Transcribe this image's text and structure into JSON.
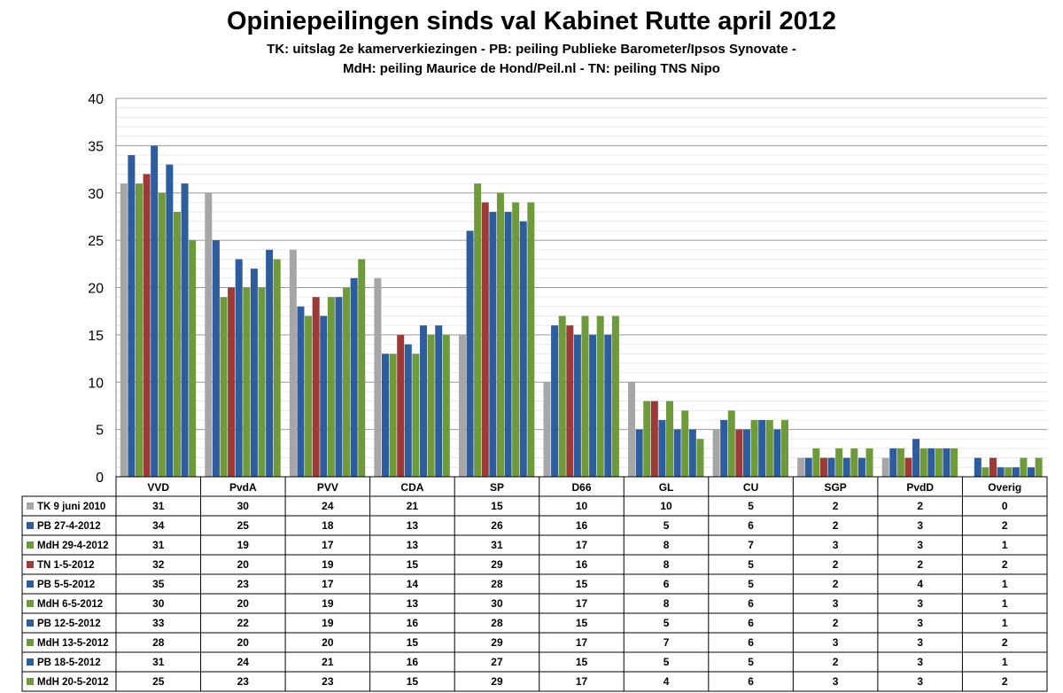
{
  "chart_data": {
    "type": "bar",
    "title": "Opiniepeilingen sinds val Kabinet Rutte april 2012",
    "subtitle_lines": [
      "TK: uitslag 2e kamerverkiezingen - PB: peiling Publieke Barometer/Ipsos Synovate -",
      "MdH: peiling Maurice de Hond/Peil.nl - TN: peiling TNS Nipo"
    ],
    "xlabel": "",
    "ylabel": "",
    "ylim": [
      0,
      40
    ],
    "yticks": [
      0,
      5,
      10,
      15,
      20,
      25,
      30,
      35,
      40
    ],
    "grid": true,
    "legend": "data-table-left",
    "categories": [
      "VVD",
      "PvdA",
      "PVV",
      "CDA",
      "SP",
      "D66",
      "GL",
      "CU",
      "SGP",
      "PvdD",
      "Overig"
    ],
    "series": [
      {
        "name": "TK 9 juni 2010",
        "color": "#a6a6a6",
        "values": [
          31,
          30,
          24,
          21,
          15,
          10,
          10,
          5,
          2,
          2,
          0
        ]
      },
      {
        "name": "PB 27-4-2012",
        "color": "#2e5d9e",
        "values": [
          34,
          25,
          18,
          13,
          26,
          16,
          5,
          6,
          2,
          3,
          2
        ]
      },
      {
        "name": "MdH 29-4-2012",
        "color": "#6f9a3c",
        "values": [
          31,
          19,
          17,
          13,
          31,
          17,
          8,
          7,
          3,
          3,
          1
        ]
      },
      {
        "name": "TN 1-5-2012",
        "color": "#9b3a37",
        "values": [
          32,
          20,
          19,
          15,
          29,
          16,
          8,
          5,
          2,
          2,
          2
        ]
      },
      {
        "name": "PB 5-5-2012",
        "color": "#2e5d9e",
        "values": [
          35,
          23,
          17,
          14,
          28,
          15,
          6,
          5,
          2,
          4,
          1
        ]
      },
      {
        "name": "MdH 6-5-2012",
        "color": "#6f9a3c",
        "values": [
          30,
          20,
          19,
          13,
          30,
          17,
          8,
          6,
          3,
          3,
          1
        ]
      },
      {
        "name": "PB 12-5-2012",
        "color": "#2e5d9e",
        "values": [
          33,
          22,
          19,
          16,
          28,
          15,
          5,
          6,
          2,
          3,
          1
        ]
      },
      {
        "name": "MdH 13-5-2012",
        "color": "#6f9a3c",
        "values": [
          28,
          20,
          20,
          15,
          29,
          17,
          7,
          6,
          3,
          3,
          2
        ]
      },
      {
        "name": "PB 18-5-2012",
        "color": "#2e5d9e",
        "values": [
          31,
          24,
          21,
          16,
          27,
          15,
          5,
          5,
          2,
          3,
          1
        ]
      },
      {
        "name": "MdH 20-5-2012",
        "color": "#6f9a3c",
        "values": [
          25,
          23,
          23,
          15,
          29,
          17,
          4,
          6,
          3,
          3,
          2
        ]
      }
    ]
  }
}
